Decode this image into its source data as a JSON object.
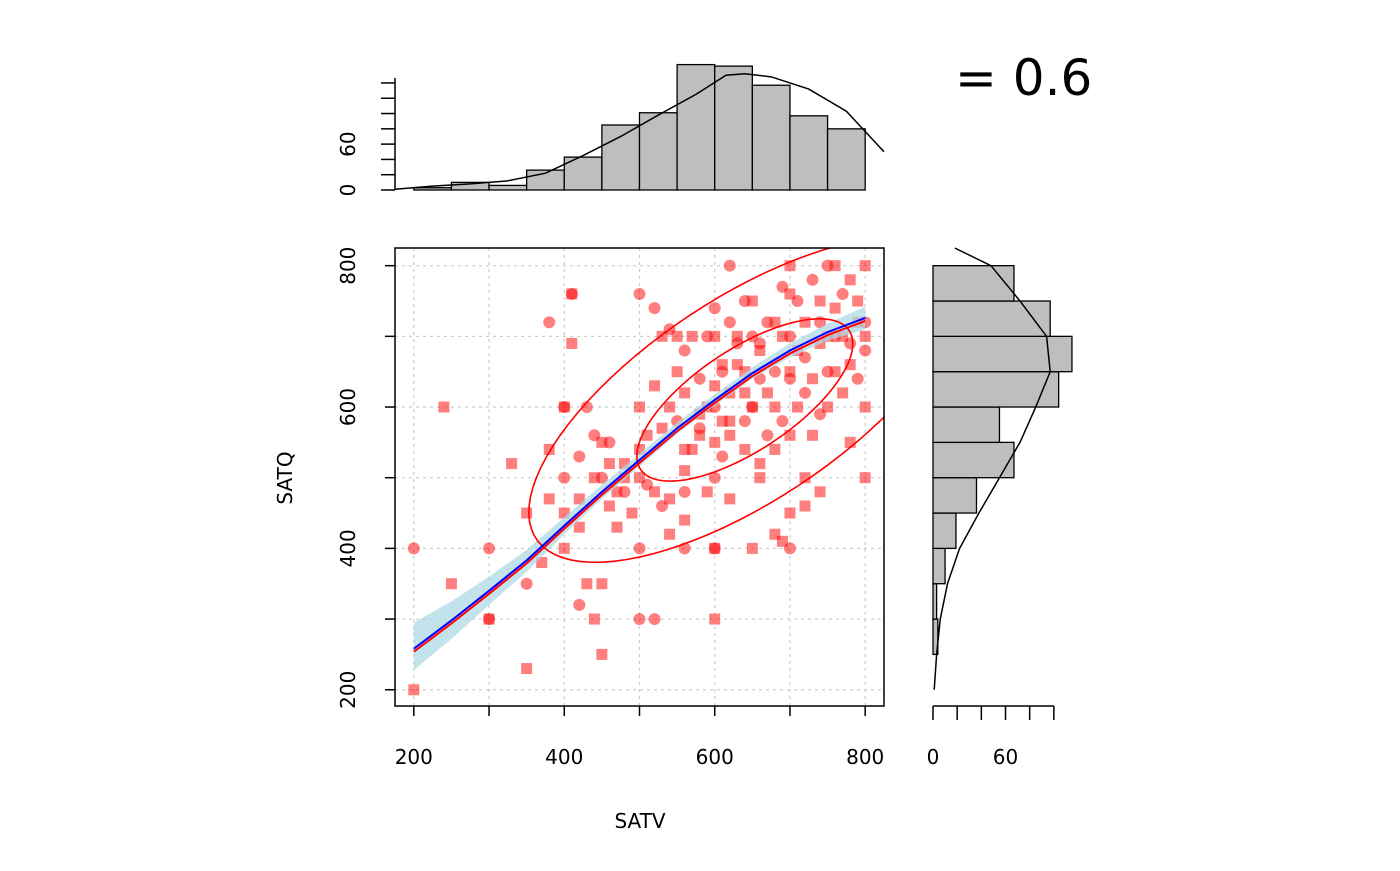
{
  "chart_data": {
    "type": "scatter",
    "title": "",
    "xlabel": "SATV",
    "ylabel": "SATQ",
    "xlim": [
      175,
      825
    ],
    "ylim": [
      177,
      825
    ],
    "x_ticks": [
      200,
      400,
      600,
      800
    ],
    "y_ticks": [
      200,
      400,
      600,
      800
    ],
    "grid": true,
    "correlation_text": "= 0.6",
    "colors": {
      "points": "#ff0000",
      "ellipse": "#ff0000",
      "fit_line": "#0000ff",
      "fit_band": "#add8e6",
      "hist_fill": "#bebebe",
      "density": "#000000"
    },
    "points_circle": [
      [
        200,
        400
      ],
      [
        300,
        400
      ],
      [
        300,
        300
      ],
      [
        350,
        350
      ],
      [
        380,
        720
      ],
      [
        400,
        600
      ],
      [
        400,
        500
      ],
      [
        410,
        760
      ],
      [
        420,
        530
      ],
      [
        420,
        320
      ],
      [
        430,
        600
      ],
      [
        440,
        560
      ],
      [
        450,
        500
      ],
      [
        460,
        550
      ],
      [
        480,
        480
      ],
      [
        500,
        300
      ],
      [
        500,
        400
      ],
      [
        500,
        760
      ],
      [
        510,
        490
      ],
      [
        520,
        740
      ],
      [
        530,
        460
      ],
      [
        540,
        710
      ],
      [
        550,
        580
      ],
      [
        560,
        680
      ],
      [
        560,
        400
      ],
      [
        580,
        640
      ],
      [
        590,
        700
      ],
      [
        600,
        400
      ],
      [
        600,
        500
      ],
      [
        600,
        600
      ],
      [
        610,
        650
      ],
      [
        620,
        800
      ],
      [
        630,
        690
      ],
      [
        640,
        750
      ],
      [
        650,
        700
      ],
      [
        650,
        600
      ],
      [
        660,
        640
      ],
      [
        670,
        720
      ],
      [
        680,
        650
      ],
      [
        690,
        580
      ],
      [
        700,
        400
      ],
      [
        700,
        700
      ],
      [
        710,
        750
      ],
      [
        720,
        670
      ],
      [
        730,
        780
      ],
      [
        740,
        720
      ],
      [
        750,
        650
      ],
      [
        760,
        700
      ],
      [
        770,
        760
      ],
      [
        780,
        690
      ],
      [
        790,
        640
      ],
      [
        800,
        720
      ],
      [
        520,
        300
      ],
      [
        560,
        480
      ],
      [
        610,
        530
      ],
      [
        670,
        560
      ],
      [
        720,
        620
      ],
      [
        640,
        580
      ],
      [
        580,
        570
      ],
      [
        690,
        770
      ],
      [
        620,
        720
      ],
      [
        740,
        590
      ],
      [
        700,
        640
      ],
      [
        660,
        690
      ],
      [
        600,
        740
      ],
      [
        750,
        800
      ],
      [
        800,
        680
      ]
    ],
    "points_square": [
      [
        200,
        200
      ],
      [
        240,
        600
      ],
      [
        250,
        350
      ],
      [
        300,
        300
      ],
      [
        330,
        520
      ],
      [
        350,
        450
      ],
      [
        350,
        230
      ],
      [
        370,
        380
      ],
      [
        380,
        540
      ],
      [
        400,
        400
      ],
      [
        400,
        600
      ],
      [
        400,
        450
      ],
      [
        410,
        690
      ],
      [
        410,
        760
      ],
      [
        420,
        430
      ],
      [
        430,
        350
      ],
      [
        440,
        300
      ],
      [
        450,
        250
      ],
      [
        450,
        350
      ],
      [
        450,
        550
      ],
      [
        460,
        520
      ],
      [
        470,
        430
      ],
      [
        470,
        480
      ],
      [
        480,
        500
      ],
      [
        490,
        450
      ],
      [
        500,
        500
      ],
      [
        500,
        600
      ],
      [
        510,
        560
      ],
      [
        520,
        630
      ],
      [
        530,
        570
      ],
      [
        540,
        600
      ],
      [
        540,
        420
      ],
      [
        550,
        650
      ],
      [
        550,
        700
      ],
      [
        560,
        620
      ],
      [
        560,
        440
      ],
      [
        570,
        540
      ],
      [
        580,
        590
      ],
      [
        590,
        600
      ],
      [
        590,
        480
      ],
      [
        600,
        550
      ],
      [
        600,
        700
      ],
      [
        600,
        300
      ],
      [
        610,
        660
      ],
      [
        620,
        580
      ],
      [
        620,
        620
      ],
      [
        630,
        700
      ],
      [
        640,
        650
      ],
      [
        650,
        600
      ],
      [
        650,
        750
      ],
      [
        660,
        680
      ],
      [
        660,
        500
      ],
      [
        670,
        620
      ],
      [
        680,
        720
      ],
      [
        690,
        700
      ],
      [
        700,
        650
      ],
      [
        700,
        760
      ],
      [
        700,
        800
      ],
      [
        710,
        600
      ],
      [
        710,
        680
      ],
      [
        720,
        720
      ],
      [
        730,
        560
      ],
      [
        740,
        750
      ],
      [
        750,
        700
      ],
      [
        750,
        600
      ],
      [
        760,
        650
      ],
      [
        760,
        800
      ],
      [
        770,
        700
      ],
      [
        780,
        780
      ],
      [
        780,
        660
      ],
      [
        790,
        750
      ],
      [
        800,
        800
      ],
      [
        800,
        600
      ],
      [
        800,
        500
      ],
      [
        800,
        700
      ],
      [
        780,
        550
      ],
      [
        740,
        480
      ],
      [
        720,
        460
      ],
      [
        700,
        450
      ],
      [
        680,
        540
      ],
      [
        660,
        520
      ],
      [
        640,
        540
      ],
      [
        620,
        470
      ],
      [
        600,
        400
      ],
      [
        580,
        560
      ],
      [
        560,
        510
      ],
      [
        540,
        470
      ],
      [
        520,
        480
      ],
      [
        500,
        540
      ],
      [
        480,
        520
      ],
      [
        460,
        460
      ],
      [
        440,
        500
      ],
      [
        420,
        470
      ],
      [
        380,
        470
      ],
      [
        560,
        540
      ],
      [
        600,
        630
      ],
      [
        620,
        560
      ],
      [
        640,
        620
      ],
      [
        680,
        600
      ],
      [
        700,
        560
      ],
      [
        720,
        500
      ],
      [
        730,
        640
      ],
      [
        740,
        690
      ],
      [
        760,
        740
      ],
      [
        770,
        620
      ],
      [
        790,
        720
      ],
      [
        650,
        400
      ],
      [
        680,
        420
      ],
      [
        690,
        410
      ],
      [
        610,
        580
      ],
      [
        630,
        660
      ],
      [
        570,
        700
      ],
      [
        530,
        700
      ]
    ],
    "fit_line": [
      [
        200,
        258
      ],
      [
        250,
        298
      ],
      [
        300,
        340
      ],
      [
        350,
        383
      ],
      [
        400,
        432
      ],
      [
        450,
        480
      ],
      [
        500,
        525
      ],
      [
        550,
        570
      ],
      [
        600,
        610
      ],
      [
        650,
        648
      ],
      [
        700,
        680
      ],
      [
        750,
        706
      ],
      [
        800,
        726
      ]
    ],
    "fit_band_upper": [
      [
        200,
        295
      ],
      [
        250,
        325
      ],
      [
        300,
        360
      ],
      [
        350,
        398
      ],
      [
        400,
        444
      ],
      [
        450,
        490
      ],
      [
        500,
        534
      ],
      [
        550,
        578
      ],
      [
        600,
        618
      ],
      [
        650,
        656
      ],
      [
        700,
        690
      ],
      [
        750,
        718
      ],
      [
        800,
        742
      ]
    ],
    "fit_band_lower": [
      [
        200,
        228
      ],
      [
        250,
        272
      ],
      [
        300,
        320
      ],
      [
        350,
        367
      ],
      [
        400,
        420
      ],
      [
        450,
        470
      ],
      [
        500,
        516
      ],
      [
        550,
        562
      ],
      [
        600,
        602
      ],
      [
        650,
        640
      ],
      [
        700,
        670
      ],
      [
        750,
        694
      ],
      [
        800,
        710
      ]
    ],
    "ellipses": [
      {
        "center": [
          640,
          610
        ],
        "rx": 170,
        "ry": 70,
        "angle_deg": 36
      },
      {
        "center": [
          640,
          610
        ],
        "rx": 340,
        "ry": 140,
        "angle_deg": 36
      }
    ],
    "hist_top": {
      "bins": [
        [
          200,
          250
        ],
        [
          250,
          300
        ],
        [
          300,
          350
        ],
        [
          350,
          400
        ],
        [
          400,
          450
        ],
        [
          450,
          500
        ],
        [
          500,
          550
        ],
        [
          550,
          600
        ],
        [
          600,
          650
        ],
        [
          650,
          700
        ],
        [
          700,
          750
        ],
        [
          750,
          800
        ]
      ],
      "counts": [
        3,
        10,
        6,
        26,
        43,
        85,
        101,
        164,
        162,
        137,
        97,
        80
      ],
      "yticks": [
        0,
        60
      ],
      "ylim": [
        0,
        170
      ],
      "density": [
        [
          175,
          1
        ],
        [
          225,
          5
        ],
        [
          275,
          8
        ],
        [
          325,
          12
        ],
        [
          375,
          22
        ],
        [
          425,
          45
        ],
        [
          475,
          70
        ],
        [
          525,
          98
        ],
        [
          575,
          125
        ],
        [
          615,
          150
        ],
        [
          640,
          152
        ],
        [
          675,
          148
        ],
        [
          725,
          132
        ],
        [
          775,
          103
        ],
        [
          825,
          50
        ]
      ]
    },
    "hist_right": {
      "bins": [
        [
          200,
          250
        ],
        [
          250,
          300
        ],
        [
          300,
          350
        ],
        [
          350,
          400
        ],
        [
          400,
          450
        ],
        [
          450,
          500
        ],
        [
          500,
          550
        ],
        [
          550,
          600
        ],
        [
          600,
          650
        ],
        [
          650,
          700
        ],
        [
          700,
          750
        ],
        [
          750,
          800
        ]
      ],
      "counts": [
        0,
        4,
        3,
        10,
        19,
        36,
        67,
        55,
        104,
        115,
        97,
        67
      ],
      "xticks": [
        0,
        60
      ],
      "xlim": [
        0,
        120
      ],
      "density": [
        [
          200,
          1
        ],
        [
          250,
          3
        ],
        [
          300,
          6
        ],
        [
          350,
          12
        ],
        [
          400,
          22
        ],
        [
          450,
          38
        ],
        [
          500,
          55
        ],
        [
          550,
          72
        ],
        [
          600,
          85
        ],
        [
          650,
          97
        ],
        [
          700,
          94
        ],
        [
          750,
          72
        ],
        [
          800,
          48
        ],
        [
          825,
          18
        ]
      ]
    }
  }
}
